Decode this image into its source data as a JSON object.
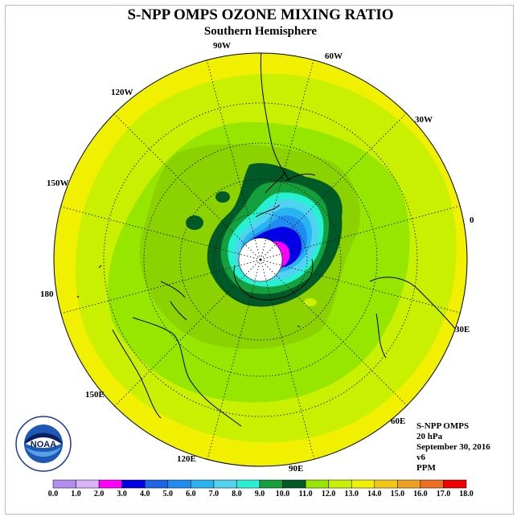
{
  "header": {
    "title": "S-NPP OMPS OZONE MIXING RATIO",
    "subtitle": "Southern Hemisphere"
  },
  "longitude_labels": {
    "lon_90w": "90W",
    "lon_60w": "60W",
    "lon_30w": "30W",
    "lon_0": "0",
    "lon_30e": "30E",
    "lon_60e": "60E",
    "lon_90e": "90E",
    "lon_120e": "120E",
    "lon_150e": "150E",
    "lon_180": "180",
    "lon_150w": "150W",
    "lon_120w": "120W"
  },
  "info": {
    "instrument": "S-NPP OMPS",
    "level": "20 hPa",
    "date": "September 30, 2016",
    "version": "v6",
    "units": "PPM"
  },
  "colorbar": {
    "ticks": [
      "0.0",
      "1.0",
      "2.0",
      "3.0",
      "4.0",
      "5.0",
      "6.0",
      "7.0",
      "8.0",
      "9.0",
      "10.0",
      "11.0",
      "12.0",
      "13.0",
      "14.0",
      "15.0",
      "16.0",
      "17.0",
      "18.0"
    ],
    "colors": [
      "#b48cf0",
      "#d8b4f8",
      "#ff00ff",
      "#0000e6",
      "#1e64e6",
      "#1e8cf0",
      "#28b4f0",
      "#50d2f0",
      "#28f0d2",
      "#14a03c",
      "#0a7830",
      "#005a28",
      "#96e600",
      "#c8f000",
      "#f0f000",
      "#f0c814",
      "#f0a01e",
      "#f06e1e",
      "#f00000",
      "#8c5a3c"
    ],
    "cmap_colors_used": [
      "#b48cf0",
      "#d8b4f8",
      "#ff00ff",
      "#0000e6",
      "#1e64e6",
      "#1e8cf0",
      "#28b4f0",
      "#50d2f0",
      "#28f0d2",
      "#14a03c",
      "#005a28",
      "#96e600",
      "#c8f000",
      "#f0f000",
      "#f0c814",
      "#f0a01e",
      "#f06e1e",
      "#f00000",
      "#8c5a3c"
    ]
  },
  "logo": {
    "text": "NOAA"
  }
}
